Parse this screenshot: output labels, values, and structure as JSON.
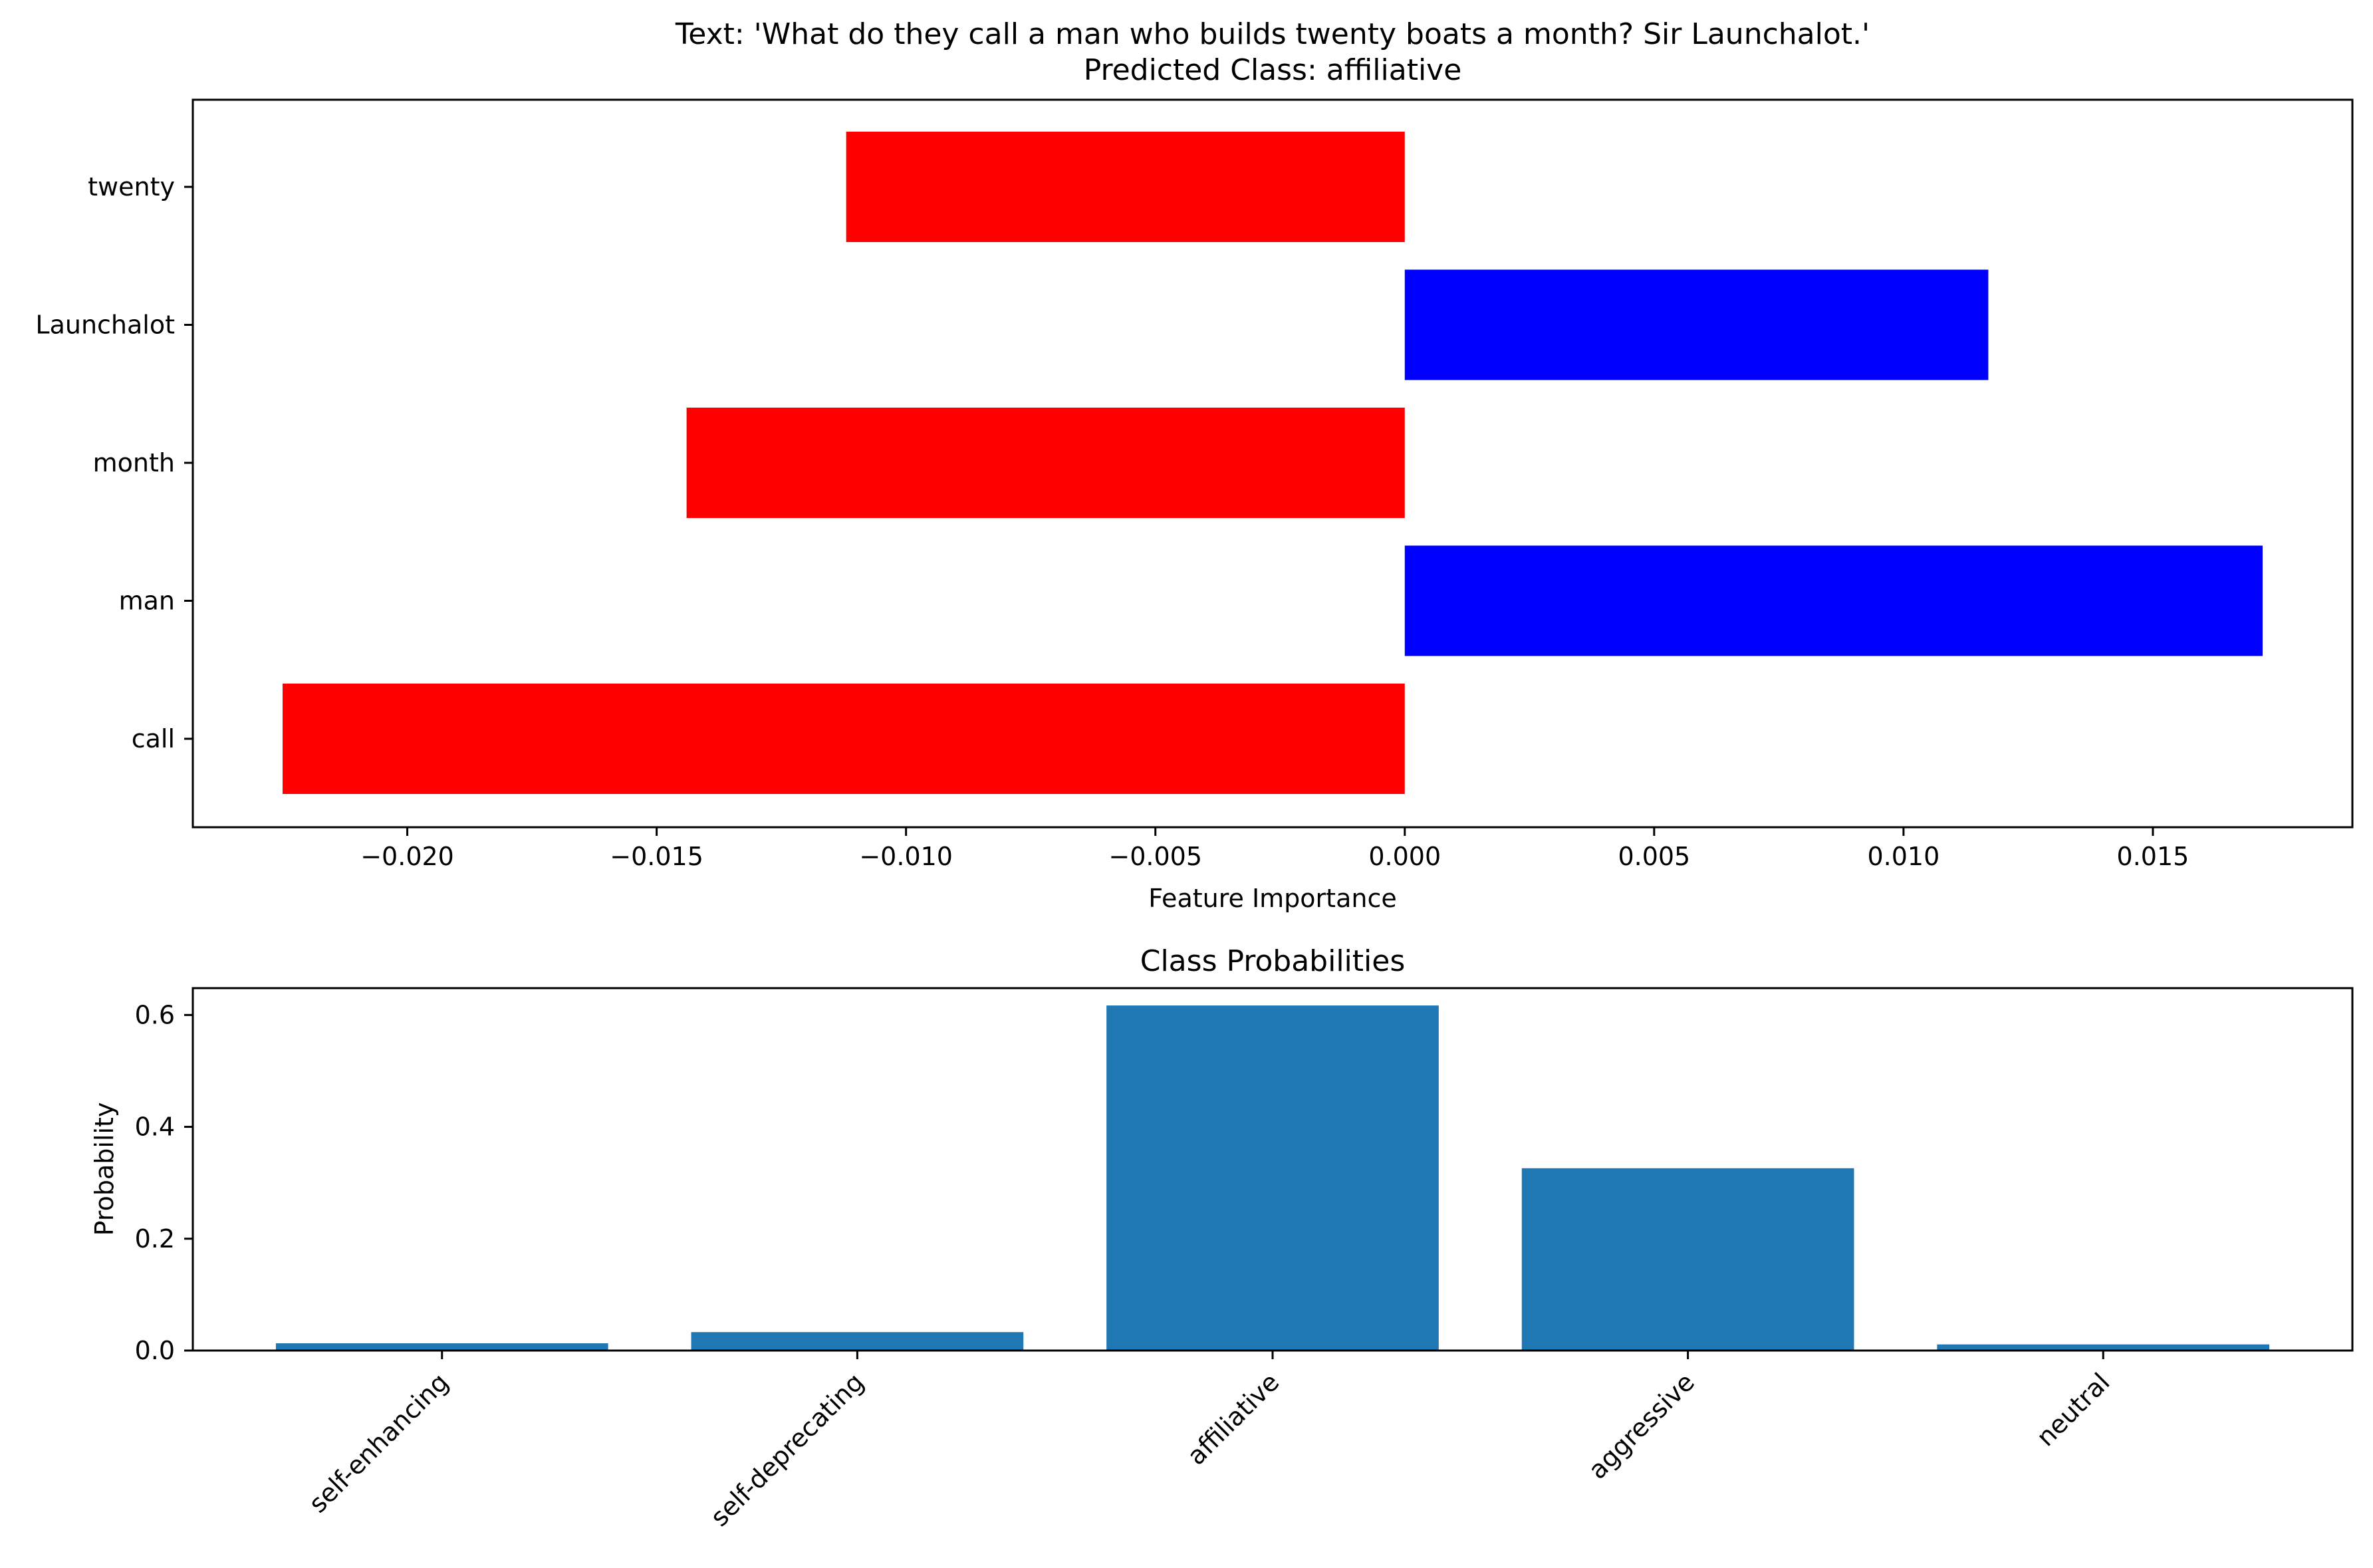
{
  "figure": {
    "title_line1": "Text: 'What do they call a man who builds twenty boats a month? Sir Launchalot.'",
    "title_line2": "Predicted Class: affiliative"
  },
  "chart_data": [
    {
      "type": "bar",
      "orientation": "horizontal",
      "title": "",
      "xlabel": "Feature Importance",
      "ylabel": "",
      "categories": [
        "twenty",
        "Launchalot",
        "month",
        "man",
        "call"
      ],
      "values": [
        -0.0112,
        0.0117,
        -0.0144,
        0.0172,
        -0.0225
      ],
      "colors": [
        "#ff0000",
        "#0000ff",
        "#ff0000",
        "#0000ff",
        "#ff0000"
      ],
      "xlim": [
        -0.0243,
        0.019
      ],
      "xticks": [
        -0.02,
        -0.015,
        -0.01,
        -0.005,
        0.0,
        0.005,
        0.01,
        0.015
      ],
      "xtick_labels": [
        "−0.020",
        "−0.015",
        "−0.010",
        "−0.005",
        "0.000",
        "0.005",
        "0.010",
        "0.015"
      ],
      "grid": false,
      "legend": "none"
    },
    {
      "type": "bar",
      "orientation": "vertical",
      "title": "Class Probabilities",
      "xlabel": "",
      "ylabel": "Probability",
      "categories": [
        "self-enhancing",
        "self-deprecating",
        "affiliative",
        "aggressive",
        "neutral"
      ],
      "values": [
        0.013,
        0.033,
        0.617,
        0.326,
        0.011
      ],
      "colors": [
        "#1f77b4",
        "#1f77b4",
        "#1f77b4",
        "#1f77b4",
        "#1f77b4"
      ],
      "ylim": [
        0,
        0.648
      ],
      "yticks": [
        0.0,
        0.2,
        0.4,
        0.6
      ],
      "ytick_labels": [
        "0.0",
        "0.2",
        "0.4",
        "0.6"
      ],
      "grid": false,
      "legend": "none"
    }
  ]
}
